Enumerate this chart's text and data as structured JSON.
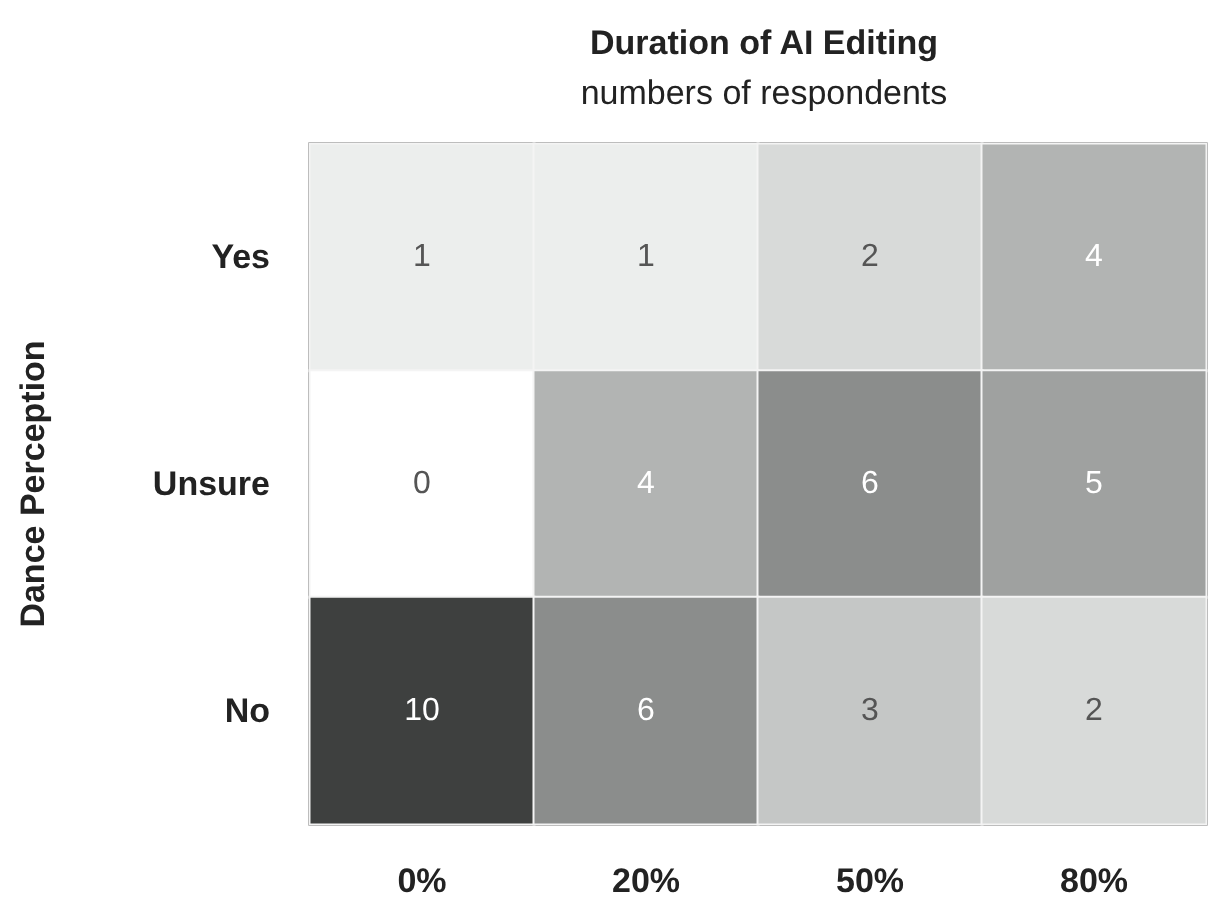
{
  "chart_data": {
    "type": "heatmap",
    "title": "Duration of AI Editing",
    "subtitle": "numbers of respondents",
    "ylabel": "Dance Perception",
    "categories": [
      "0%",
      "20%",
      "50%",
      "80%"
    ],
    "y_categories": [
      "Yes",
      "Unsure",
      "No"
    ],
    "cells": [
      [
        1,
        1,
        2,
        4
      ],
      [
        0,
        4,
        6,
        5
      ],
      [
        10,
        6,
        3,
        2
      ]
    ],
    "data_labels": true
  }
}
